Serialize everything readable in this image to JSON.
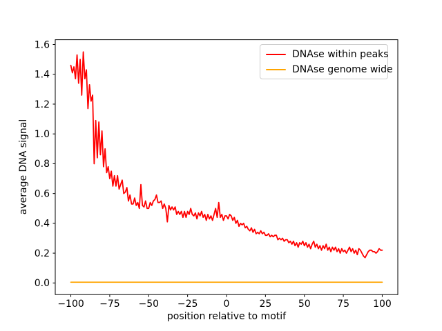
{
  "chart_data": {
    "type": "line",
    "title": "",
    "xlabel": "position relative to motif",
    "ylabel": "average DNA signal",
    "grid": false,
    "legend_position": "upper right",
    "xlim": [
      -110,
      110
    ],
    "ylim": [
      -0.078,
      1.632
    ],
    "x_ticks": [
      -100,
      -75,
      -50,
      -25,
      0,
      25,
      50,
      75,
      100
    ],
    "x_tick_labels": [
      "−100",
      "−75",
      "−50",
      "−25",
      "0",
      "25",
      "50",
      "75",
      "100"
    ],
    "y_ticks": [
      0.0,
      0.2,
      0.4,
      0.6,
      0.8,
      1.0,
      1.2,
      1.4,
      1.6
    ],
    "y_tick_labels": [
      "0.0",
      "0.2",
      "0.4",
      "0.6",
      "0.8",
      "1.0",
      "1.2",
      "1.4",
      "1.6"
    ],
    "x_start": -100,
    "x_step": 1,
    "axes_color": "#000000",
    "series": [
      {
        "name": "DNAse within peaks",
        "color": "#ff0000",
        "y_values": [
          1.46,
          1.41,
          1.45,
          1.37,
          1.53,
          1.34,
          1.5,
          1.26,
          1.55,
          1.37,
          1.43,
          1.17,
          1.33,
          1.22,
          1.26,
          0.8,
          1.09,
          0.84,
          1.08,
          0.86,
          1.02,
          0.78,
          0.9,
          0.74,
          0.78,
          0.7,
          0.75,
          0.65,
          0.72,
          0.65,
          0.72,
          0.63,
          0.66,
          0.69,
          0.6,
          0.61,
          0.64,
          0.55,
          0.59,
          0.53,
          0.53,
          0.57,
          0.52,
          0.54,
          0.5,
          0.66,
          0.52,
          0.51,
          0.55,
          0.5,
          0.5,
          0.54,
          0.52,
          0.55,
          0.56,
          0.59,
          0.54,
          0.54,
          0.55,
          0.5,
          0.53,
          0.5,
          0.41,
          0.52,
          0.49,
          0.51,
          0.49,
          0.51,
          0.46,
          0.48,
          0.46,
          0.48,
          0.44,
          0.48,
          0.44,
          0.48,
          0.46,
          0.5,
          0.46,
          0.45,
          0.47,
          0.43,
          0.47,
          0.45,
          0.48,
          0.44,
          0.46,
          0.42,
          0.46,
          0.43,
          0.45,
          0.42,
          0.46,
          0.5,
          0.44,
          0.54,
          0.44,
          0.46,
          0.42,
          0.45,
          0.45,
          0.43,
          0.46,
          0.45,
          0.42,
          0.44,
          0.4,
          0.42,
          0.38,
          0.4,
          0.39,
          0.4,
          0.37,
          0.38,
          0.36,
          0.35,
          0.37,
          0.34,
          0.36,
          0.33,
          0.34,
          0.33,
          0.35,
          0.33,
          0.34,
          0.32,
          0.32,
          0.33,
          0.31,
          0.32,
          0.31,
          0.32,
          0.32,
          0.29,
          0.3,
          0.29,
          0.3,
          0.28,
          0.29,
          0.29,
          0.27,
          0.28,
          0.26,
          0.28,
          0.25,
          0.27,
          0.24,
          0.27,
          0.26,
          0.28,
          0.25,
          0.27,
          0.24,
          0.26,
          0.23,
          0.26,
          0.28,
          0.24,
          0.26,
          0.23,
          0.25,
          0.22,
          0.25,
          0.23,
          0.26,
          0.22,
          0.24,
          0.21,
          0.24,
          0.22,
          0.24,
          0.21,
          0.23,
          0.2,
          0.23,
          0.21,
          0.22,
          0.2,
          0.22,
          0.24,
          0.21,
          0.23,
          0.2,
          0.22,
          0.19,
          0.23,
          0.22,
          0.2,
          0.18,
          0.17,
          0.19,
          0.21,
          0.22,
          0.22,
          0.21,
          0.21,
          0.2,
          0.21,
          0.23,
          0.22,
          0.22
        ]
      },
      {
        "name": "DNAse genome wide",
        "color": "#ffa500",
        "constant": 0.005,
        "x_range": [
          -100,
          100
        ]
      }
    ]
  }
}
